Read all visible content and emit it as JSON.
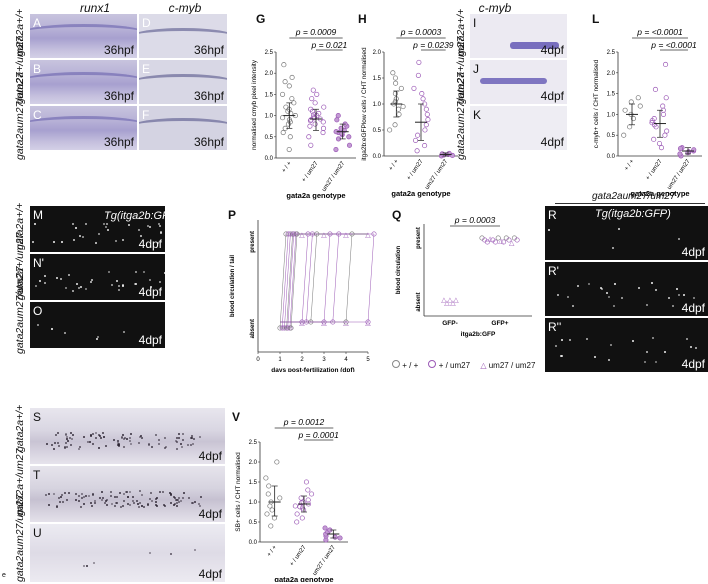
{
  "colors": {
    "purple": "#9b59b6",
    "lightpurple": "#c39bd3",
    "dark": "#333333"
  },
  "top": {
    "runx1": "runx1",
    "cmyb": "c-myb",
    "cmyb2": "c-myb"
  },
  "panels": {
    "A": "A",
    "B": "B",
    "C": "C",
    "D": "D",
    "E": "E",
    "F": "F",
    "I": "I",
    "J": "J",
    "K": "K",
    "M": "M",
    "N": "N'",
    "O": "O",
    "R": "R",
    "R1": "R'",
    "R2": "R''",
    "S": "S",
    "T": "T",
    "U": "U",
    "G": "G",
    "H": "H",
    "L": "L",
    "P": "P",
    "Q": "Q",
    "V": "V",
    "e": "e"
  },
  "stages": {
    "h36": "36hpf",
    "d4": "4dpf"
  },
  "genotypes": {
    "wt": "gata2a+/+",
    "het": "gata2a+/um27",
    "hom": "gata2aum27/um27",
    "hom_title": "gata2aum27/um27"
  },
  "tg": "Tg(itga2b:GFP)",
  "chart_data": [
    {
      "type": "scatter",
      "id": "G",
      "ylabel": "normalised cmyb pixel intensity",
      "xlabel": "gata2a genotype",
      "categories": [
        "+ / +",
        "+ / um27",
        "um27 / um27"
      ],
      "ylim": [
        0,
        2.5
      ],
      "yticks": [
        0.0,
        0.5,
        1.0,
        1.5,
        2.0,
        2.5
      ],
      "means": [
        1.0,
        0.92,
        0.62
      ],
      "sd": [
        [
          0.7,
          1.3
        ],
        [
          0.65,
          1.15
        ],
        [
          0.45,
          0.8
        ]
      ],
      "series": [
        {
          "values": [
            0.2,
            0.5,
            0.6,
            0.7,
            0.8,
            0.9,
            0.95,
            1.0,
            1.05,
            1.1,
            1.2,
            1.3,
            1.4,
            1.5,
            1.7,
            1.8,
            1.9,
            2.2,
            0.85,
            1.15
          ]
        },
        {
          "values": [
            0.3,
            0.5,
            0.6,
            0.7,
            0.75,
            0.8,
            0.85,
            0.9,
            0.95,
            1.0,
            1.05,
            1.1,
            1.15,
            1.2,
            1.3,
            1.4,
            1.5,
            1.6,
            0.88,
            0.92,
            0.97,
            1.02
          ]
        },
        {
          "values": [
            0.2,
            0.3,
            0.45,
            0.5,
            0.55,
            0.6,
            0.65,
            0.7,
            0.75,
            0.8,
            0.9,
            1.0,
            0.58,
            0.62
          ]
        }
      ],
      "pvalues": [
        "p = 0.0009",
        "p = 0.021"
      ]
    },
    {
      "type": "scatter",
      "id": "H",
      "ylabel": "itga2b:eGFPlow cells / CHT normalised",
      "xlabel": "gata2a genotype",
      "categories": [
        "+ / +",
        "+ / um27",
        "um27 / um27"
      ],
      "ylim": [
        0,
        2.0
      ],
      "yticks": [
        0.0,
        0.5,
        1.0,
        1.5,
        2.0
      ],
      "means": [
        1.0,
        0.65,
        0.03
      ],
      "sd": [
        [
          0.75,
          1.25
        ],
        [
          0.3,
          1.0
        ],
        [
          0.0,
          0.06
        ]
      ],
      "series": [
        {
          "values": [
            0.5,
            0.6,
            0.8,
            0.9,
            0.95,
            1.0,
            1.05,
            1.1,
            1.2,
            1.3,
            1.4,
            1.5,
            1.6
          ]
        },
        {
          "values": [
            0.1,
            0.2,
            0.3,
            0.4,
            0.5,
            0.6,
            0.7,
            0.8,
            0.9,
            1.0,
            1.1,
            1.2,
            1.3,
            1.55,
            1.8
          ]
        },
        {
          "values": [
            0.0,
            0.02,
            0.03,
            0.05,
            0.04,
            0.01
          ]
        }
      ],
      "pvalues": [
        "p = 0.0003",
        "p = 0.0239"
      ]
    },
    {
      "type": "scatter",
      "id": "L",
      "ylabel": "c-myb+ cells / CHT normalised",
      "xlabel": "gata2a genotype",
      "categories": [
        "+ / +",
        "+ / um27",
        "um27 / um27"
      ],
      "ylim": [
        0,
        2.5
      ],
      "yticks": [
        0.0,
        0.5,
        1.0,
        1.5,
        2.0,
        2.5
      ],
      "means": [
        1.0,
        0.78,
        0.12
      ],
      "sd": [
        [
          0.75,
          1.25
        ],
        [
          0.45,
          1.1
        ],
        [
          0.05,
          0.2
        ]
      ],
      "series": [
        {
          "values": [
            0.5,
            0.7,
            0.9,
            1.0,
            1.1,
            1.2,
            1.3,
            1.4
          ]
        },
        {
          "values": [
            0.2,
            0.3,
            0.4,
            0.5,
            0.6,
            0.7,
            0.8,
            0.9,
            1.0,
            1.1,
            1.2,
            1.4,
            1.6,
            2.2,
            0.75,
            0.85
          ]
        },
        {
          "values": [
            0.0,
            0.05,
            0.1,
            0.12,
            0.15,
            0.2,
            0.08,
            0.18
          ]
        }
      ],
      "pvalues": [
        "p = <0.0001",
        "p = <0.0001"
      ]
    },
    {
      "type": "line",
      "id": "P",
      "ylabel": "blood circulation / tail",
      "xlabel": "days post-fertilization (dpf)",
      "xlim": [
        0,
        5
      ],
      "xticks": [
        0,
        1,
        2,
        3,
        4,
        5
      ],
      "ycats": [
        "absent",
        "present"
      ],
      "transitions": [
        1.0,
        1.1,
        1.2,
        1.3,
        1.35,
        1.45,
        1.5,
        2.0,
        2.2,
        2.4,
        3.0,
        3.4,
        4.0,
        5.0
      ]
    },
    {
      "type": "scatter",
      "id": "Q",
      "ylabel": "blood circulation",
      "xlabel": "itga2b:GFP",
      "categories": [
        "GFP-",
        "GFP+"
      ],
      "ycats": [
        "absent",
        "present"
      ],
      "pvalues": [
        "p = 0.0003"
      ],
      "legend": [
        "+ / +",
        "+ / um27",
        "um27 / um27"
      ]
    },
    {
      "type": "scatter",
      "id": "V",
      "ylabel": "SB+ cells / CHT normalised",
      "xlabel": "gata2a genotype",
      "categories": [
        "+ / +",
        "+ / um27",
        "um27 / um27"
      ],
      "ylim": [
        0,
        2.5
      ],
      "yticks": [
        0.0,
        0.5,
        1.0,
        1.5,
        2.0,
        2.5
      ],
      "means": [
        1.0,
        0.95,
        0.2
      ],
      "sd": [
        [
          0.65,
          1.4
        ],
        [
          0.75,
          1.15
        ],
        [
          0.1,
          0.3
        ]
      ],
      "series": [
        {
          "values": [
            0.4,
            0.6,
            0.7,
            0.8,
            0.9,
            1.0,
            1.1,
            1.2,
            1.4,
            1.6,
            2.0
          ]
        },
        {
          "values": [
            0.5,
            0.6,
            0.7,
            0.8,
            0.85,
            0.9,
            0.95,
            1.0,
            1.05,
            1.1,
            1.2,
            1.3,
            1.5,
            0.88,
            0.98
          ]
        },
        {
          "values": [
            0.05,
            0.1,
            0.15,
            0.2,
            0.25,
            0.3,
            0.35,
            0.12
          ]
        }
      ],
      "pvalues": [
        "p = 0.0012",
        "p = 0.0001"
      ]
    }
  ]
}
